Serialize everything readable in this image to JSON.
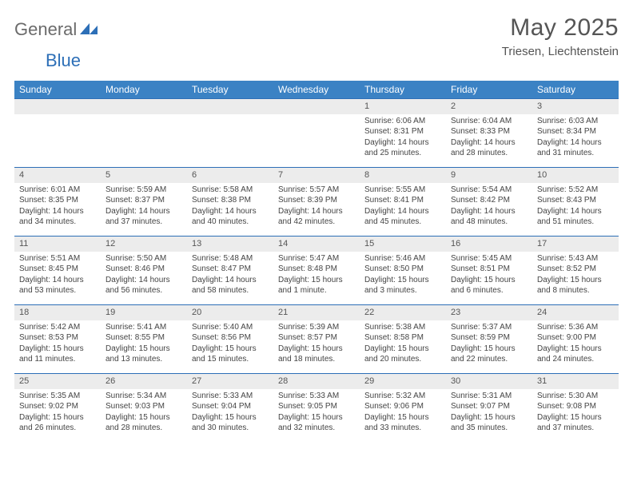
{
  "logo": {
    "text1": "General",
    "text2": "Blue"
  },
  "title": "May 2025",
  "location": "Triesen, Liechtenstein",
  "colors": {
    "header_bg": "#3b82c4",
    "header_text": "#ffffff",
    "rule": "#2d6fb7",
    "daybar_bg": "#ececec",
    "body_text": "#444444",
    "logo_gray": "#6b6b6b",
    "logo_blue": "#2d6fb7"
  },
  "weekdays": [
    "Sunday",
    "Monday",
    "Tuesday",
    "Wednesday",
    "Thursday",
    "Friday",
    "Saturday"
  ],
  "first_weekday_index": 4,
  "days": [
    {
      "n": "1",
      "sunrise": "Sunrise: 6:06 AM",
      "sunset": "Sunset: 8:31 PM",
      "day1": "Daylight: 14 hours",
      "day2": "and 25 minutes."
    },
    {
      "n": "2",
      "sunrise": "Sunrise: 6:04 AM",
      "sunset": "Sunset: 8:33 PM",
      "day1": "Daylight: 14 hours",
      "day2": "and 28 minutes."
    },
    {
      "n": "3",
      "sunrise": "Sunrise: 6:03 AM",
      "sunset": "Sunset: 8:34 PM",
      "day1": "Daylight: 14 hours",
      "day2": "and 31 minutes."
    },
    {
      "n": "4",
      "sunrise": "Sunrise: 6:01 AM",
      "sunset": "Sunset: 8:35 PM",
      "day1": "Daylight: 14 hours",
      "day2": "and 34 minutes."
    },
    {
      "n": "5",
      "sunrise": "Sunrise: 5:59 AM",
      "sunset": "Sunset: 8:37 PM",
      "day1": "Daylight: 14 hours",
      "day2": "and 37 minutes."
    },
    {
      "n": "6",
      "sunrise": "Sunrise: 5:58 AM",
      "sunset": "Sunset: 8:38 PM",
      "day1": "Daylight: 14 hours",
      "day2": "and 40 minutes."
    },
    {
      "n": "7",
      "sunrise": "Sunrise: 5:57 AM",
      "sunset": "Sunset: 8:39 PM",
      "day1": "Daylight: 14 hours",
      "day2": "and 42 minutes."
    },
    {
      "n": "8",
      "sunrise": "Sunrise: 5:55 AM",
      "sunset": "Sunset: 8:41 PM",
      "day1": "Daylight: 14 hours",
      "day2": "and 45 minutes."
    },
    {
      "n": "9",
      "sunrise": "Sunrise: 5:54 AM",
      "sunset": "Sunset: 8:42 PM",
      "day1": "Daylight: 14 hours",
      "day2": "and 48 minutes."
    },
    {
      "n": "10",
      "sunrise": "Sunrise: 5:52 AM",
      "sunset": "Sunset: 8:43 PM",
      "day1": "Daylight: 14 hours",
      "day2": "and 51 minutes."
    },
    {
      "n": "11",
      "sunrise": "Sunrise: 5:51 AM",
      "sunset": "Sunset: 8:45 PM",
      "day1": "Daylight: 14 hours",
      "day2": "and 53 minutes."
    },
    {
      "n": "12",
      "sunrise": "Sunrise: 5:50 AM",
      "sunset": "Sunset: 8:46 PM",
      "day1": "Daylight: 14 hours",
      "day2": "and 56 minutes."
    },
    {
      "n": "13",
      "sunrise": "Sunrise: 5:48 AM",
      "sunset": "Sunset: 8:47 PM",
      "day1": "Daylight: 14 hours",
      "day2": "and 58 minutes."
    },
    {
      "n": "14",
      "sunrise": "Sunrise: 5:47 AM",
      "sunset": "Sunset: 8:48 PM",
      "day1": "Daylight: 15 hours",
      "day2": "and 1 minute."
    },
    {
      "n": "15",
      "sunrise": "Sunrise: 5:46 AM",
      "sunset": "Sunset: 8:50 PM",
      "day1": "Daylight: 15 hours",
      "day2": "and 3 minutes."
    },
    {
      "n": "16",
      "sunrise": "Sunrise: 5:45 AM",
      "sunset": "Sunset: 8:51 PM",
      "day1": "Daylight: 15 hours",
      "day2": "and 6 minutes."
    },
    {
      "n": "17",
      "sunrise": "Sunrise: 5:43 AM",
      "sunset": "Sunset: 8:52 PM",
      "day1": "Daylight: 15 hours",
      "day2": "and 8 minutes."
    },
    {
      "n": "18",
      "sunrise": "Sunrise: 5:42 AM",
      "sunset": "Sunset: 8:53 PM",
      "day1": "Daylight: 15 hours",
      "day2": "and 11 minutes."
    },
    {
      "n": "19",
      "sunrise": "Sunrise: 5:41 AM",
      "sunset": "Sunset: 8:55 PM",
      "day1": "Daylight: 15 hours",
      "day2": "and 13 minutes."
    },
    {
      "n": "20",
      "sunrise": "Sunrise: 5:40 AM",
      "sunset": "Sunset: 8:56 PM",
      "day1": "Daylight: 15 hours",
      "day2": "and 15 minutes."
    },
    {
      "n": "21",
      "sunrise": "Sunrise: 5:39 AM",
      "sunset": "Sunset: 8:57 PM",
      "day1": "Daylight: 15 hours",
      "day2": "and 18 minutes."
    },
    {
      "n": "22",
      "sunrise": "Sunrise: 5:38 AM",
      "sunset": "Sunset: 8:58 PM",
      "day1": "Daylight: 15 hours",
      "day2": "and 20 minutes."
    },
    {
      "n": "23",
      "sunrise": "Sunrise: 5:37 AM",
      "sunset": "Sunset: 8:59 PM",
      "day1": "Daylight: 15 hours",
      "day2": "and 22 minutes."
    },
    {
      "n": "24",
      "sunrise": "Sunrise: 5:36 AM",
      "sunset": "Sunset: 9:00 PM",
      "day1": "Daylight: 15 hours",
      "day2": "and 24 minutes."
    },
    {
      "n": "25",
      "sunrise": "Sunrise: 5:35 AM",
      "sunset": "Sunset: 9:02 PM",
      "day1": "Daylight: 15 hours",
      "day2": "and 26 minutes."
    },
    {
      "n": "26",
      "sunrise": "Sunrise: 5:34 AM",
      "sunset": "Sunset: 9:03 PM",
      "day1": "Daylight: 15 hours",
      "day2": "and 28 minutes."
    },
    {
      "n": "27",
      "sunrise": "Sunrise: 5:33 AM",
      "sunset": "Sunset: 9:04 PM",
      "day1": "Daylight: 15 hours",
      "day2": "and 30 minutes."
    },
    {
      "n": "28",
      "sunrise": "Sunrise: 5:33 AM",
      "sunset": "Sunset: 9:05 PM",
      "day1": "Daylight: 15 hours",
      "day2": "and 32 minutes."
    },
    {
      "n": "29",
      "sunrise": "Sunrise: 5:32 AM",
      "sunset": "Sunset: 9:06 PM",
      "day1": "Daylight: 15 hours",
      "day2": "and 33 minutes."
    },
    {
      "n": "30",
      "sunrise": "Sunrise: 5:31 AM",
      "sunset": "Sunset: 9:07 PM",
      "day1": "Daylight: 15 hours",
      "day2": "and 35 minutes."
    },
    {
      "n": "31",
      "sunrise": "Sunrise: 5:30 AM",
      "sunset": "Sunset: 9:08 PM",
      "day1": "Daylight: 15 hours",
      "day2": "and 37 minutes."
    }
  ]
}
